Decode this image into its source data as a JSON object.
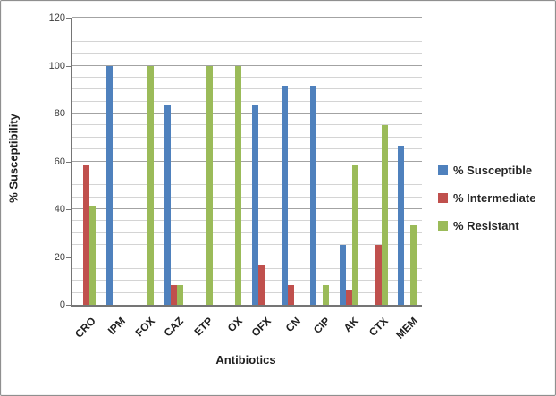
{
  "chart_data": {
    "type": "bar",
    "title": "",
    "xlabel": "Antibiotics",
    "ylabel": "% Susceptibility",
    "ylim": [
      0,
      120
    ],
    "ytick_step": 20,
    "minor_gridline_step": 5,
    "grid": true,
    "legend_position": "right",
    "categories": [
      "CRO",
      "IPM",
      "FOX",
      "CAZ",
      "ETP",
      "OX",
      "OFX",
      "CN",
      "CIP",
      "AK",
      "CTX",
      "MEM"
    ],
    "series": [
      {
        "name": "% Susceptible",
        "color": "#4F81BD",
        "values": [
          0,
          100,
          0,
          83.3,
          0,
          0,
          83.3,
          91.6,
          91.6,
          25,
          0,
          66.6
        ]
      },
      {
        "name": "% Intermediate",
        "color": "#C0504D",
        "values": [
          58.3,
          0,
          0,
          8.3,
          0,
          0,
          16.6,
          8.3,
          0,
          6.5,
          25,
          0
        ]
      },
      {
        "name": "% Resistant",
        "color": "#9BBB59",
        "values": [
          41.6,
          0,
          100,
          8.3,
          100,
          100,
          0,
          0,
          8.3,
          58.3,
          75,
          33.3
        ]
      }
    ],
    "colors": {
      "axis": "#757575",
      "major_grid": "#A3A3A3",
      "minor_grid": "#D4D4D4",
      "text": "#1F1F1F"
    }
  }
}
